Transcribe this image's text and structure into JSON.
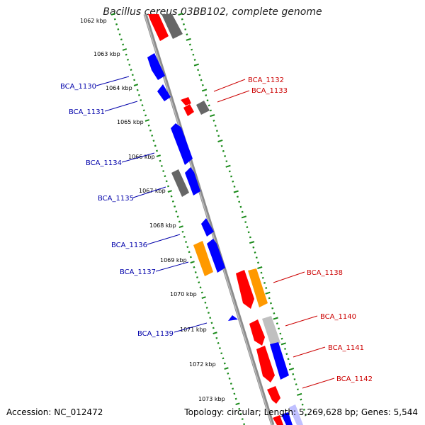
{
  "title": "Bacillus cereus 03BB102, complete genome",
  "accession_text": "Accession: NC_012472",
  "summary_text": "Topology: circular; Length: 5,269,628 bp; Genes: 5,544",
  "colors": {
    "backbone": "#8c8c8c",
    "tick_ring": "#1a8a1a",
    "forward_label": "#cc0000",
    "reverse_label": "#0000aa",
    "gene_red": "#ff0000",
    "gene_blue": "#0000ff",
    "gene_orange": "#ff9900",
    "gene_gray": "#666666",
    "gene_lightgray": "#c0c0c0"
  },
  "kbp_labels": [
    "1062 kbp",
    "1063 kbp",
    "1064 kbp",
    "1065 kbp",
    "1066 kbp",
    "1067 kbp",
    "1068 kbp",
    "1069 kbp",
    "1070 kbp",
    "1071 kbp",
    "1072 kbp",
    "1073 kbp"
  ],
  "gene_labels": [
    {
      "name": "BCA_1130",
      "strand": "reverse"
    },
    {
      "name": "BCA_1131",
      "strand": "reverse"
    },
    {
      "name": "BCA_1132",
      "strand": "forward"
    },
    {
      "name": "BCA_1133",
      "strand": "forward"
    },
    {
      "name": "BCA_1134",
      "strand": "reverse"
    },
    {
      "name": "BCA_1135",
      "strand": "reverse"
    },
    {
      "name": "BCA_1136",
      "strand": "reverse"
    },
    {
      "name": "BCA_1137",
      "strand": "reverse"
    },
    {
      "name": "BCA_1138",
      "strand": "forward"
    },
    {
      "name": "BCA_1139",
      "strand": "reverse"
    },
    {
      "name": "BCA_1140",
      "strand": "forward"
    },
    {
      "name": "BCA_1141",
      "strand": "forward"
    },
    {
      "name": "BCA_1142",
      "strand": "forward"
    }
  ]
}
